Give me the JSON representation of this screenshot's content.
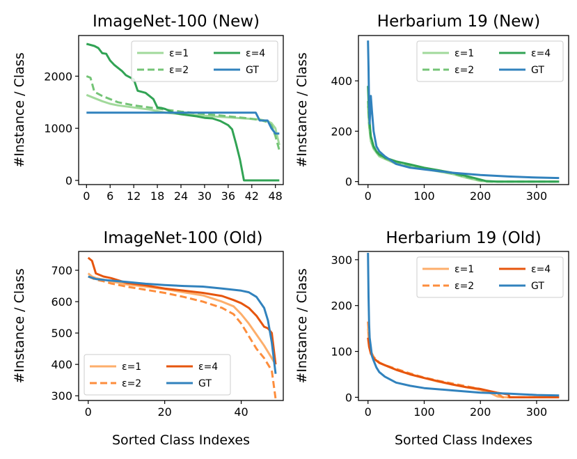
{
  "figure": {
    "xlabel": "Sorted Class Indexes",
    "ylabel": "#Instance / Class"
  },
  "chart_data": [
    {
      "type": "line",
      "title": "ImageNet-100 (New)",
      "xlim": [
        -2,
        50
      ],
      "ylim": [
        -80,
        2780
      ],
      "xticks": [
        0,
        6,
        12,
        18,
        24,
        30,
        36,
        42,
        48
      ],
      "yticks": [
        0,
        1000,
        2000
      ],
      "legend_position": "top-right",
      "series": [
        {
          "name": "ε=1",
          "color": "#a1d99b",
          "dash": "",
          "x": [
            0,
            2,
            4,
            6,
            8,
            10,
            12,
            14,
            16,
            18,
            20,
            24,
            28,
            32,
            36,
            40,
            44,
            46,
            47,
            48,
            49
          ],
          "y": [
            1640,
            1580,
            1520,
            1470,
            1440,
            1420,
            1400,
            1380,
            1360,
            1330,
            1300,
            1270,
            1250,
            1230,
            1210,
            1190,
            1170,
            1140,
            1100,
            1000,
            680
          ]
        },
        {
          "name": "ε=2",
          "color": "#74c476",
          "dash": "10,5",
          "x": [
            0,
            1,
            2,
            4,
            6,
            8,
            10,
            12,
            14,
            16,
            18,
            20,
            24,
            28,
            32,
            36,
            40,
            44,
            46,
            47,
            48,
            49
          ],
          "y": [
            2000,
            1970,
            1700,
            1620,
            1560,
            1500,
            1470,
            1440,
            1420,
            1400,
            1380,
            1360,
            1320,
            1290,
            1260,
            1230,
            1200,
            1160,
            1120,
            1060,
            850,
            580
          ]
        },
        {
          "name": "ε=4",
          "color": "#31a354",
          "dash": "",
          "x": [
            0,
            1,
            2,
            3,
            4,
            5,
            6,
            7,
            8,
            9,
            10,
            11,
            12,
            13,
            14,
            15,
            16,
            17,
            18,
            19,
            20,
            22,
            24,
            26,
            28,
            30,
            32,
            34,
            36,
            37,
            38,
            39,
            40,
            41,
            42,
            44,
            46,
            48,
            49
          ],
          "y": [
            2620,
            2600,
            2580,
            2540,
            2440,
            2430,
            2300,
            2220,
            2160,
            2100,
            2020,
            1980,
            1940,
            1720,
            1700,
            1680,
            1620,
            1560,
            1400,
            1390,
            1370,
            1300,
            1270,
            1250,
            1230,
            1200,
            1190,
            1140,
            1060,
            980,
            700,
            400,
            0,
            0,
            0,
            0,
            0,
            0,
            0
          ]
        },
        {
          "name": "GT",
          "color": "#3182bd",
          "dash": "",
          "x": [
            0,
            10,
            20,
            30,
            40,
            43,
            44,
            46,
            47,
            48,
            49
          ],
          "y": [
            1300,
            1300,
            1300,
            1300,
            1300,
            1300,
            1150,
            1150,
            1000,
            900,
            900
          ]
        }
      ]
    },
    {
      "type": "line",
      "title": "Herbarium 19 (New)",
      "xlim": [
        -17,
        357
      ],
      "ylim": [
        -12,
        580
      ],
      "xticks": [
        0,
        100,
        200,
        300
      ],
      "yticks": [
        0,
        200,
        400
      ],
      "legend_position": "top-right",
      "series": [
        {
          "name": "ε=1",
          "color": "#a1d99b",
          "dash": "",
          "x": [
            0,
            2,
            5,
            10,
            15,
            20,
            30,
            50,
            75,
            100,
            125,
            150,
            175,
            200,
            220,
            240,
            280,
            340
          ],
          "y": [
            300,
            220,
            160,
            130,
            115,
            100,
            90,
            70,
            60,
            50,
            40,
            30,
            15,
            2,
            0,
            0,
            0,
            0
          ]
        },
        {
          "name": "ε=2",
          "color": "#74c476",
          "dash": "10,5",
          "x": [
            0,
            2,
            5,
            10,
            15,
            20,
            30,
            50,
            75,
            100,
            125,
            150,
            175,
            200,
            210,
            240,
            280,
            340
          ],
          "y": [
            320,
            230,
            170,
            135,
            118,
            105,
            92,
            75,
            62,
            52,
            42,
            32,
            18,
            5,
            0,
            0,
            0,
            0
          ]
        },
        {
          "name": "ε=4",
          "color": "#31a354",
          "dash": "",
          "x": [
            0,
            2,
            5,
            10,
            15,
            20,
            30,
            50,
            75,
            100,
            125,
            150,
            175,
            200,
            210,
            230,
            280,
            340
          ],
          "y": [
            380,
            260,
            180,
            140,
            120,
            108,
            95,
            80,
            68,
            55,
            45,
            35,
            22,
            8,
            2,
            0,
            0,
            0
          ]
        },
        {
          "name": "GT",
          "color": "#3182bd",
          "dash": "",
          "x": [
            0,
            1,
            2,
            3,
            5,
            7,
            10,
            15,
            20,
            30,
            50,
            75,
            100,
            150,
            200,
            250,
            300,
            340
          ],
          "y": [
            560,
            450,
            300,
            230,
            340,
            280,
            200,
            140,
            120,
            100,
            70,
            55,
            48,
            35,
            26,
            20,
            16,
            14
          ]
        }
      ]
    },
    {
      "type": "line",
      "title": "ImageNet-100 (Old)",
      "xlim": [
        -2.5,
        51
      ],
      "ylim": [
        285,
        760
      ],
      "xticks": [
        0,
        20,
        40
      ],
      "yticks": [
        300,
        400,
        500,
        600,
        700
      ],
      "legend_position": "bottom-left",
      "series": [
        {
          "name": "ε=1",
          "color": "#fdae6b",
          "dash": "",
          "x": [
            0,
            1,
            2,
            4,
            6,
            10,
            15,
            20,
            25,
            30,
            35,
            38,
            40,
            42,
            44,
            46,
            47,
            48,
            49
          ],
          "y": [
            690,
            680,
            675,
            670,
            665,
            655,
            648,
            640,
            630,
            620,
            600,
            585,
            560,
            530,
            495,
            460,
            440,
            420,
            400
          ]
        },
        {
          "name": "ε=2",
          "color": "#fd8d3c",
          "dash": "10,5",
          "x": [
            0,
            1,
            2,
            4,
            6,
            10,
            15,
            20,
            25,
            30,
            35,
            38,
            40,
            42,
            44,
            46,
            47,
            48,
            49
          ],
          "y": [
            680,
            675,
            670,
            665,
            658,
            648,
            638,
            628,
            615,
            600,
            580,
            560,
            530,
            490,
            450,
            420,
            400,
            380,
            290
          ]
        },
        {
          "name": "ε=4",
          "color": "#e6550d",
          "dash": "",
          "x": [
            0,
            1,
            2,
            3,
            4,
            6,
            10,
            15,
            20,
            25,
            30,
            35,
            38,
            40,
            42,
            44,
            46,
            47,
            48,
            49
          ],
          "y": [
            740,
            730,
            690,
            685,
            680,
            675,
            660,
            652,
            642,
            635,
            628,
            618,
            605,
            595,
            580,
            555,
            520,
            515,
            500,
            400
          ]
        },
        {
          "name": "GT",
          "color": "#3182bd",
          "dash": "",
          "x": [
            0,
            2,
            5,
            10,
            15,
            20,
            25,
            30,
            35,
            40,
            42,
            44,
            46,
            47,
            48,
            49
          ],
          "y": [
            680,
            672,
            668,
            663,
            657,
            653,
            650,
            648,
            642,
            635,
            630,
            615,
            580,
            540,
            470,
            370
          ]
        }
      ]
    },
    {
      "type": "line",
      "title": "Herbarium 19 (Old)",
      "xlim": [
        -17,
        357
      ],
      "ylim": [
        -7,
        318
      ],
      "xticks": [
        0,
        100,
        200,
        300
      ],
      "yticks": [
        0,
        100,
        200,
        300
      ],
      "legend_position": "top-right",
      "series": [
        {
          "name": "ε=1",
          "color": "#fdae6b",
          "dash": "",
          "x": [
            0,
            2,
            5,
            10,
            15,
            20,
            30,
            50,
            75,
            100,
            125,
            150,
            175,
            200,
            220,
            230,
            240,
            280,
            340
          ],
          "y": [
            150,
            120,
            100,
            85,
            80,
            75,
            70,
            60,
            50,
            42,
            34,
            28,
            22,
            16,
            8,
            2,
            0,
            0,
            0
          ]
        },
        {
          "name": "ε=2",
          "color": "#fd8d3c",
          "dash": "10,5",
          "x": [
            0,
            2,
            5,
            10,
            15,
            20,
            30,
            50,
            75,
            100,
            125,
            150,
            175,
            200,
            230,
            240,
            280,
            340
          ],
          "y": [
            165,
            125,
            100,
            88,
            82,
            76,
            70,
            62,
            52,
            43,
            36,
            30,
            24,
            18,
            8,
            0,
            0,
            0
          ]
        },
        {
          "name": "ε=4",
          "color": "#e6550d",
          "dash": "",
          "x": [
            0,
            2,
            5,
            10,
            15,
            20,
            30,
            50,
            75,
            100,
            125,
            150,
            175,
            200,
            230,
            250,
            252,
            280,
            340
          ],
          "y": [
            130,
            110,
            95,
            85,
            80,
            75,
            70,
            60,
            50,
            42,
            35,
            28,
            22,
            18,
            10,
            6,
            0,
            0,
            0
          ]
        },
        {
          "name": "GT",
          "color": "#3182bd",
          "dash": "",
          "x": [
            0,
            1,
            2,
            3,
            5,
            7,
            10,
            15,
            20,
            30,
            50,
            75,
            100,
            150,
            200,
            250,
            300,
            340
          ],
          "y": [
            315,
            220,
            160,
            130,
            110,
            90,
            80,
            65,
            55,
            45,
            32,
            25,
            20,
            15,
            10,
            8,
            5,
            4
          ]
        }
      ]
    }
  ]
}
